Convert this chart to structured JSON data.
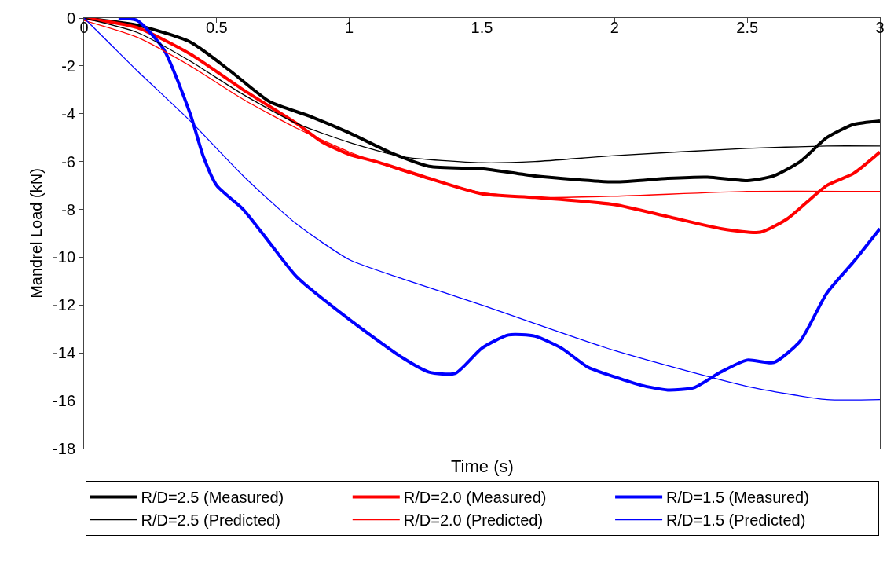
{
  "chart_data": {
    "type": "line",
    "xlabel": "Time (s)",
    "ylabel": "Mandrel Load (kN)",
    "xlim": [
      0,
      3
    ],
    "xticks": [
      0,
      0.5,
      1,
      1.5,
      2,
      2.5,
      3
    ],
    "ylim": [
      -18,
      0
    ],
    "yticks": [
      -18,
      -16,
      -14,
      -12,
      -10,
      -8,
      -6,
      -4,
      -2,
      0
    ],
    "legend": "bottom",
    "marker": "none",
    "series": [
      {
        "name": "R/D=2.5 (Measured)",
        "color": "#000000",
        "line_style": "solid",
        "x": [
          0,
          0.2,
          0.4,
          0.55,
          0.7,
          0.85,
          1.0,
          1.15,
          1.3,
          1.5,
          1.7,
          2.0,
          2.2,
          2.35,
          2.5,
          2.6,
          2.7,
          2.8,
          2.9,
          3.0
        ],
        "values": [
          0,
          -0.3,
          -1.0,
          -2.2,
          -3.5,
          -4.1,
          -4.8,
          -5.6,
          -6.2,
          -6.3,
          -6.6,
          -6.85,
          -6.7,
          -6.65,
          -6.8,
          -6.6,
          -6.0,
          -5.0,
          -4.45,
          -4.3
        ]
      },
      {
        "name": "R/D=2.0 (Measured)",
        "color": "#ff0000",
        "line_style": "solid",
        "x": [
          0,
          0.2,
          0.4,
          0.6,
          0.8,
          0.9,
          1.0,
          1.1,
          1.3,
          1.5,
          1.7,
          2.0,
          2.2,
          2.4,
          2.55,
          2.65,
          2.8,
          2.9,
          3.0
        ],
        "values": [
          0,
          -0.4,
          -1.5,
          -3.0,
          -4.4,
          -5.2,
          -5.7,
          -6.0,
          -6.7,
          -7.35,
          -7.5,
          -7.8,
          -8.3,
          -8.8,
          -8.95,
          -8.4,
          -7.0,
          -6.5,
          -5.6
        ]
      },
      {
        "name": "R/D=1.5 (Measured)",
        "color": "#0000ff",
        "line_style": "solid",
        "x": [
          0.13,
          0.2,
          0.3,
          0.4,
          0.45,
          0.5,
          0.6,
          0.7,
          0.8,
          1.0,
          1.2,
          1.3,
          1.4,
          1.5,
          1.6,
          1.7,
          1.8,
          1.9,
          2.0,
          2.1,
          2.2,
          2.3,
          2.4,
          2.5,
          2.6,
          2.7,
          2.8,
          2.9,
          3.0
        ],
        "values": [
          0,
          -0.1,
          -1.3,
          -4.0,
          -5.8,
          -7.0,
          -8.0,
          -9.4,
          -10.8,
          -12.6,
          -14.2,
          -14.8,
          -14.85,
          -13.8,
          -13.25,
          -13.3,
          -13.8,
          -14.6,
          -15.0,
          -15.35,
          -15.55,
          -15.45,
          -14.8,
          -14.3,
          -14.4,
          -13.5,
          -11.5,
          -10.2,
          -8.8
        ]
      },
      {
        "name": "R/D=2.5 (Predicted)",
        "color": "#000000",
        "line_style": "solid",
        "x": [
          0,
          0.2,
          0.4,
          0.6,
          0.8,
          1.0,
          1.2,
          1.5,
          1.7,
          2.0,
          2.5,
          2.8,
          3.0
        ],
        "values": [
          0,
          -0.6,
          -1.8,
          -3.2,
          -4.4,
          -5.2,
          -5.8,
          -6.05,
          -6.0,
          -5.75,
          -5.45,
          -5.35,
          -5.35
        ]
      },
      {
        "name": "R/D=2.0 (Predicted)",
        "color": "#ff0000",
        "line_style": "solid",
        "x": [
          0,
          0.2,
          0.4,
          0.6,
          0.8,
          1.0,
          1.2,
          1.5,
          1.7,
          2.0,
          2.5,
          3.0
        ],
        "values": [
          -0.1,
          -0.8,
          -2.0,
          -3.4,
          -4.6,
          -5.6,
          -6.4,
          -7.3,
          -7.5,
          -7.45,
          -7.25,
          -7.25
        ]
      },
      {
        "name": "R/D=1.5 (Predicted)",
        "color": "#0000ff",
        "line_style": "solid",
        "x": [
          0,
          0.1,
          0.2,
          0.4,
          0.6,
          0.8,
          1.0,
          1.2,
          1.5,
          2.0,
          2.5,
          2.8,
          3.0
        ],
        "values": [
          0,
          -1.1,
          -2.2,
          -4.3,
          -6.6,
          -8.6,
          -10.1,
          -10.9,
          -12.0,
          -13.9,
          -15.4,
          -15.95,
          -15.95
        ]
      }
    ]
  }
}
